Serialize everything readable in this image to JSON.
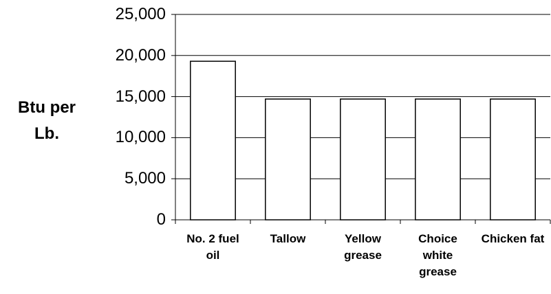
{
  "chart_data": {
    "type": "bar",
    "ylabel": "Btu per Lb.",
    "categories": [
      "No. 2 fuel oil",
      "Tallow",
      "Yellow grease",
      "Choice white grease",
      "Chicken fat"
    ],
    "values": [
      19300,
      14700,
      14700,
      14700,
      14700
    ],
    "color": "#ffffff",
    "ylim": [
      0,
      25000
    ],
    "yticks": [
      0,
      {
        "value": 5000,
        "label": "5,000"
      },
      {
        "value": 10000,
        "label": "10,000"
      },
      {
        "value": 15000,
        "label": "15,000"
      },
      {
        "value": 20000,
        "label": "20,000"
      },
      {
        "value": 25000,
        "label": "25,000"
      }
    ],
    "grid": true
  }
}
